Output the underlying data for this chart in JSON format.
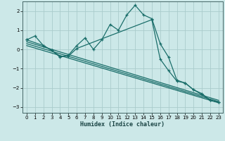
{
  "xlabel": "Humidex (Indice chaleur)",
  "xlim": [
    -0.5,
    23.5
  ],
  "ylim": [
    -3.3,
    2.5
  ],
  "bg_color": "#cce8e8",
  "grid_color": "#aacccc",
  "line_color": "#1a6e6a",
  "xticks": [
    0,
    1,
    2,
    3,
    4,
    5,
    6,
    7,
    8,
    9,
    10,
    11,
    12,
    13,
    14,
    15,
    16,
    17,
    18,
    19,
    20,
    21,
    22,
    23
  ],
  "yticks": [
    -3,
    -2,
    -1,
    0,
    1,
    2
  ],
  "curve1_x": [
    0,
    1,
    2,
    3,
    4,
    5,
    6,
    7,
    8,
    9,
    10,
    11,
    12,
    13,
    14,
    15,
    16,
    17,
    18,
    19,
    20,
    21,
    22,
    23
  ],
  "curve1_y": [
    0.5,
    0.7,
    0.2,
    -0.05,
    -0.4,
    -0.3,
    0.2,
    0.6,
    0.0,
    0.5,
    1.3,
    1.0,
    1.8,
    2.3,
    1.8,
    1.6,
    0.3,
    -0.4,
    -1.6,
    -1.75,
    -2.1,
    -2.3,
    -2.65,
    -2.75
  ],
  "curve2_x": [
    0,
    2,
    3,
    4,
    5,
    6,
    15,
    16,
    17,
    18,
    19,
    20,
    21,
    22,
    23
  ],
  "curve2_y": [
    0.5,
    0.2,
    -0.05,
    -0.35,
    -0.35,
    0.05,
    1.55,
    -0.5,
    -1.1,
    -1.65,
    -1.75,
    -2.1,
    -2.35,
    -2.65,
    -2.75
  ],
  "trend1_x": [
    0,
    23
  ],
  "trend1_y": [
    0.4,
    -2.65
  ],
  "trend2_x": [
    0,
    23
  ],
  "trend2_y": [
    0.3,
    -2.72
  ],
  "trend3_x": [
    0,
    23
  ],
  "trend3_y": [
    0.2,
    -2.78
  ]
}
